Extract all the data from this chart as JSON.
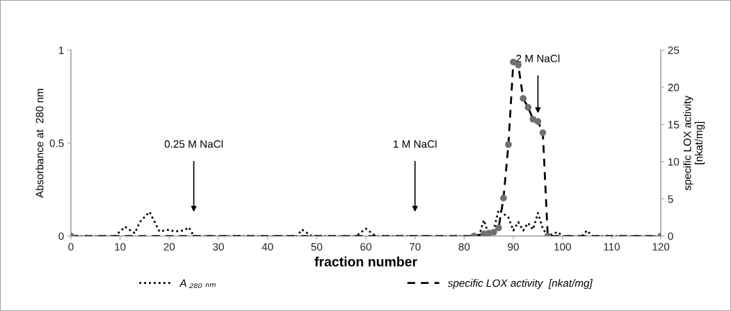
{
  "chart_data": {
    "type": "line",
    "xlabel": "fraction number",
    "ylabel": "Absorbance at  280 nm",
    "y2label": "specific LOX activity\n[nkat/mg]",
    "xlim": [
      0,
      120
    ],
    "xticks": [
      0,
      10,
      20,
      30,
      40,
      50,
      60,
      70,
      80,
      90,
      100,
      110,
      120
    ],
    "ylim": [
      0,
      1
    ],
    "yticks": [
      0,
      0.5,
      1
    ],
    "y2lim": [
      0,
      25
    ],
    "y2ticks": [
      0,
      5,
      10,
      15,
      20,
      25
    ],
    "grid": false,
    "legend": "bottom",
    "series": [
      {
        "name": "A ₂₈₀ ₙₘ",
        "color": "#000000",
        "line_style": "dotted",
        "marker": "none",
        "x": [
          0,
          9,
          11,
          13,
          14,
          16,
          18,
          20,
          21,
          23,
          24,
          25,
          46,
          47,
          49,
          58,
          60,
          62,
          83,
          84,
          85,
          86,
          87,
          88,
          89,
          90,
          91,
          92,
          93,
          94,
          95,
          96,
          97,
          99,
          100,
          104,
          105,
          106,
          120
        ],
        "values": [
          0,
          0,
          0.05,
          0.015,
          0.075,
          0.13,
          0.025,
          0.035,
          0.025,
          0.03,
          0.047,
          0,
          0,
          0.035,
          0,
          0,
          0.04,
          0,
          0,
          0.086,
          0.005,
          0.03,
          0.14,
          0.12,
          0.1,
          0.03,
          0.075,
          0.03,
          0.07,
          0.035,
          0.124,
          0.04,
          0,
          0.022,
          0,
          0,
          0.03,
          0,
          0
        ]
      },
      {
        "name": "specific LOX activity  [nkat/mg]",
        "color": "#000000",
        "line_style": "dashed",
        "marker": "circle",
        "axis": "y2",
        "x": [
          0,
          82,
          84,
          85,
          86,
          87,
          88,
          89,
          90,
          91,
          92,
          93,
          94,
          95,
          96,
          97,
          120
        ],
        "values": [
          0,
          0,
          0.3,
          0.4,
          0.5,
          1.1,
          5.1,
          12.3,
          23.4,
          23.0,
          18.5,
          17.3,
          15.7,
          15.4,
          13.9,
          0,
          0
        ]
      }
    ],
    "annotations": [
      "0.25 M NaCl",
      "1 M NaCl",
      "2 M NaCl"
    ]
  }
}
